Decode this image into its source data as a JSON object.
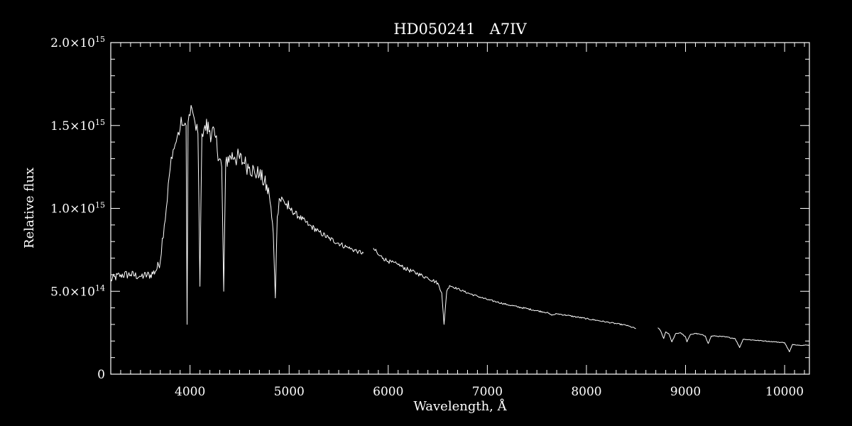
{
  "chart_data": {
    "type": "line",
    "title": "HD050241   A7IV",
    "xlabel": "Wavelength, Å",
    "ylabel": "Relative flux",
    "xlim": [
      3200,
      10250
    ],
    "ylim": [
      0,
      2000000000000000.0
    ],
    "x_ticks": [
      {
        "value": 4000,
        "label": "4000"
      },
      {
        "value": 5000,
        "label": "5000"
      },
      {
        "value": 6000,
        "label": "6000"
      },
      {
        "value": 7000,
        "label": "7000"
      },
      {
        "value": 8000,
        "label": "8000"
      },
      {
        "value": 9000,
        "label": "9000"
      },
      {
        "value": 10000,
        "label": "10000"
      }
    ],
    "y_ticks": [
      {
        "value": 0,
        "mantissa": "0",
        "exponent": ""
      },
      {
        "value": 500000000000000.0,
        "mantissa": "5.0×10",
        "exponent": "14"
      },
      {
        "value": 1000000000000000.0,
        "mantissa": "1.0×10",
        "exponent": "15"
      },
      {
        "value": 1500000000000000.0,
        "mantissa": "1.5×10",
        "exponent": "15"
      },
      {
        "value": 2000000000000000.0,
        "mantissa": "2.0×10",
        "exponent": "15"
      }
    ],
    "grid": false,
    "legend": "none",
    "colors": {
      "background": "#000000",
      "foreground": "#ffffff"
    },
    "series": [
      {
        "x": [
          3200,
          3300,
          3400,
          3500,
          3600,
          3650,
          3700,
          3720,
          3740,
          3760,
          3780,
          3800,
          3820,
          3840,
          3860,
          3880,
          3900,
          3920,
          3940,
          3960,
          3970,
          3980,
          4000,
          4020,
          4040,
          4060,
          4080,
          4100,
          4120,
          4150,
          4200,
          4250,
          4300,
          4320,
          4340,
          4360,
          4400,
          4450,
          4500,
          4550,
          4600,
          4650,
          4700,
          4750,
          4800,
          4840,
          4861,
          4880,
          4900,
          4950,
          5000,
          5100,
          5200,
          5300,
          5400,
          5500,
          5600,
          5700,
          5750
        ],
        "y": [
          570000000000000.0,
          600000000000000.0,
          600000000000000.0,
          590000000000000.0,
          600000000000000.0,
          620000000000000.0,
          680000000000000.0,
          820000000000000.0,
          900000000000000.0,
          1000000000000000.0,
          1150000000000000.0,
          1240000000000000.0,
          1300000000000000.0,
          1360000000000000.0,
          1400000000000000.0,
          1460000000000000.0,
          1480000000000000.0,
          1500000000000000.0,
          1500000000000000.0,
          1500000000000000.0,
          300000000000000.0,
          1520000000000000.0,
          1560000000000000.0,
          1600000000000000.0,
          1550000000000000.0,
          1470000000000000.0,
          1450000000000000.0,
          530000000000000.0,
          1450000000000000.0,
          1500000000000000.0,
          1470000000000000.0,
          1440000000000000.0,
          1300000000000000.0,
          1250000000000000.0,
          500000000000000.0,
          1280000000000000.0,
          1320000000000000.0,
          1310000000000000.0,
          1300000000000000.0,
          1270000000000000.0,
          1250000000000000.0,
          1220000000000000.0,
          1200000000000000.0,
          1160000000000000.0,
          1080000000000000.0,
          850000000000000.0,
          460000000000000.0,
          950000000000000.0,
          1060000000000000.0,
          1040000000000000.0,
          1000000000000000.0,
          950000000000000.0,
          900000000000000.0,
          860000000000000.0,
          820000000000000.0,
          790000000000000.0,
          760000000000000.0,
          740000000000000.0,
          730000000000000.0
        ]
      },
      {
        "x": [
          5850,
          5900,
          5950,
          6000,
          6100,
          6200,
          6300,
          6400,
          6450,
          6500,
          6540,
          6563,
          6590,
          6620,
          6700,
          6800,
          6900,
          7000,
          7100,
          7200,
          7300,
          7400,
          7500,
          7600,
          7650,
          7700,
          7800,
          7900,
          8000,
          8100,
          8200,
          8300,
          8400,
          8500
        ],
        "y": [
          760000000000000.0,
          720000000000000.0,
          700000000000000.0,
          680000000000000.0,
          660000000000000.0,
          630000000000000.0,
          605000000000000.0,
          580000000000000.0,
          565000000000000.0,
          550000000000000.0,
          490000000000000.0,
          300000000000000.0,
          500000000000000.0,
          535000000000000.0,
          515000000000000.0,
          490000000000000.0,
          470000000000000.0,
          450000000000000.0,
          435000000000000.0,
          420000000000000.0,
          407000000000000.0,
          395000000000000.0,
          383000000000000.0,
          372000000000000.0,
          355000000000000.0,
          365000000000000.0,
          355000000000000.0,
          345000000000000.0,
          335000000000000.0,
          325000000000000.0,
          315000000000000.0,
          305000000000000.0,
          295000000000000.0,
          275000000000000.0
        ]
      },
      {
        "x": [
          8720,
          8750,
          8780,
          8800,
          8830,
          8862,
          8900,
          8950,
          9000,
          9015,
          9050,
          9100,
          9150,
          9200,
          9229,
          9260,
          9300,
          9400,
          9500,
          9546,
          9580,
          9600,
          9700,
          9800,
          9900,
          10000,
          10049,
          10080,
          10150,
          10250
        ],
        "y": [
          280000000000000.0,
          260000000000000.0,
          215000000000000.0,
          255000000000000.0,
          245000000000000.0,
          195000000000000.0,
          245000000000000.0,
          250000000000000.0,
          225000000000000.0,
          195000000000000.0,
          240000000000000.0,
          245000000000000.0,
          240000000000000.0,
          230000000000000.0,
          185000000000000.0,
          230000000000000.0,
          230000000000000.0,
          225000000000000.0,
          215000000000000.0,
          160000000000000.0,
          210000000000000.0,
          210000000000000.0,
          205000000000000.0,
          200000000000000.0,
          195000000000000.0,
          190000000000000.0,
          135000000000000.0,
          180000000000000.0,
          175000000000000.0,
          175000000000000.0
        ]
      }
    ]
  }
}
